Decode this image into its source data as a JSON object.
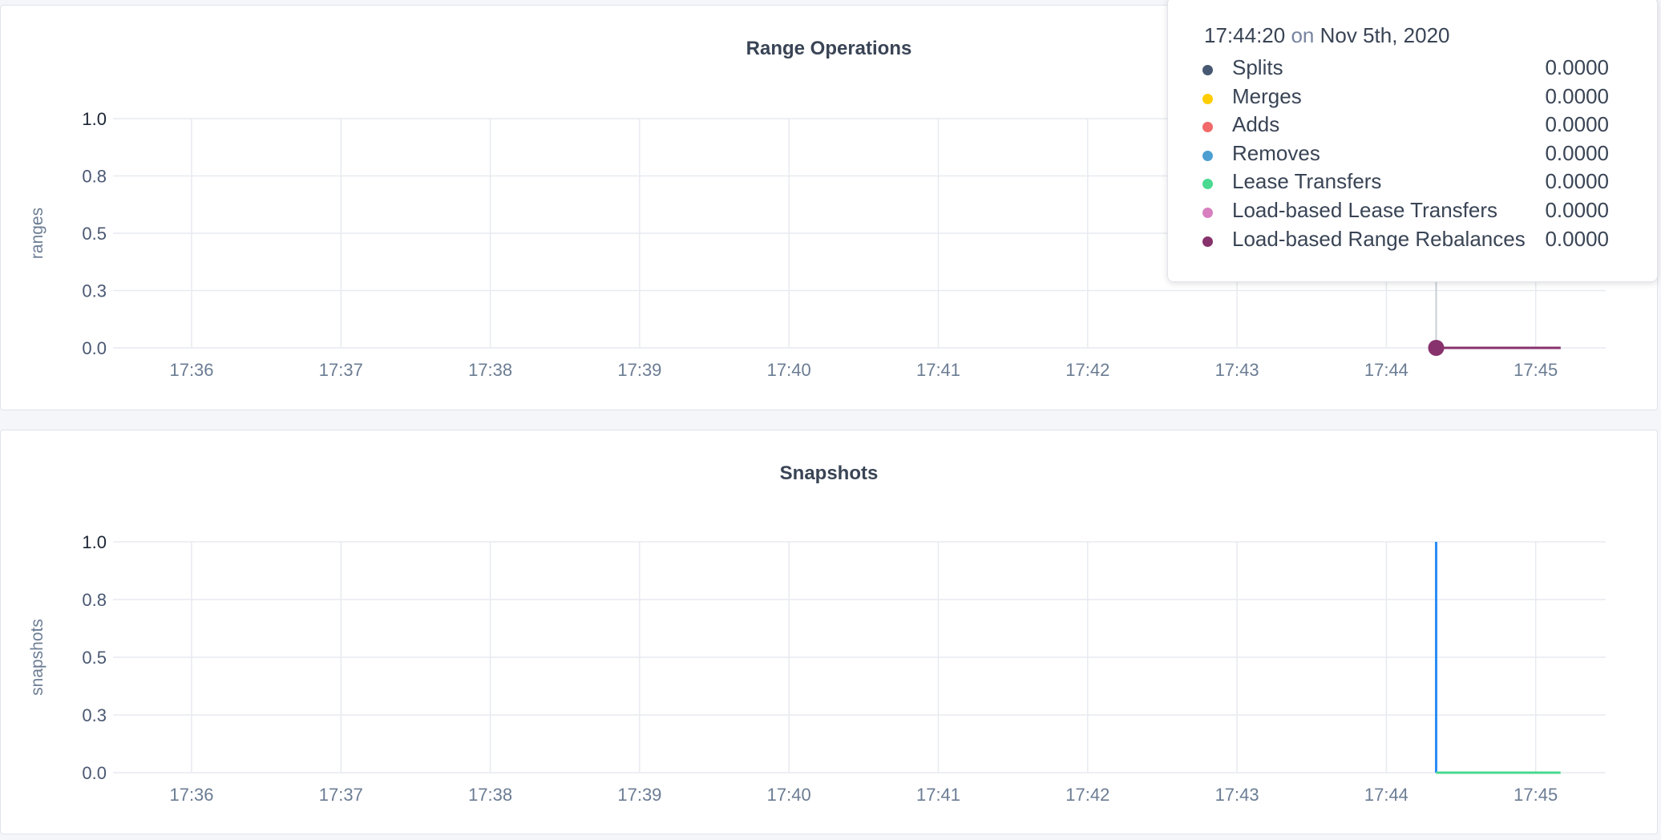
{
  "charts": [
    {
      "title": "Range Operations",
      "ylabel": "ranges",
      "yticks": [
        "1.0",
        "0.8",
        "0.5",
        "0.3",
        "0.0"
      ],
      "xticks": [
        "17:36",
        "17:37",
        "17:38",
        "17:39",
        "17:40",
        "17:41",
        "17:42",
        "17:43",
        "17:44",
        "17:45"
      ]
    },
    {
      "title": "Snapshots",
      "ylabel": "snapshots",
      "yticks": [
        "1.0",
        "0.8",
        "0.5",
        "0.3",
        "0.0"
      ],
      "xticks": [
        "17:36",
        "17:37",
        "17:38",
        "17:39",
        "17:40",
        "17:41",
        "17:42",
        "17:43",
        "17:44",
        "17:45"
      ]
    }
  ],
  "chart_data": [
    {
      "type": "line",
      "title": "Range Operations",
      "ylabel": "ranges",
      "ylim": [
        0,
        1
      ],
      "yticks": [
        1.0,
        0.75,
        0.5,
        0.25,
        0.0
      ],
      "x_ticks": [
        "17:36",
        "17:37",
        "17:38",
        "17:39",
        "17:40",
        "17:41",
        "17:42",
        "17:43",
        "17:44",
        "17:45"
      ],
      "grid": true,
      "series": [
        {
          "name": "Splits",
          "color": "#475872",
          "x": [
            "17:44:20",
            "17:45:10"
          ],
          "y": [
            0,
            0
          ]
        },
        {
          "name": "Merges",
          "color": "#ffcd02",
          "x": [
            "17:44:20",
            "17:45:10"
          ],
          "y": [
            0,
            0
          ]
        },
        {
          "name": "Adds",
          "color": "#f16969",
          "x": [
            "17:44:20",
            "17:45:10"
          ],
          "y": [
            0,
            0
          ]
        },
        {
          "name": "Removes",
          "color": "#4e9fd1",
          "x": [
            "17:44:20",
            "17:45:10"
          ],
          "y": [
            0,
            0
          ]
        },
        {
          "name": "Lease Transfers",
          "color": "#49d990",
          "x": [
            "17:44:20",
            "17:45:10"
          ],
          "y": [
            0,
            0
          ]
        },
        {
          "name": "Load-based Lease Transfers",
          "color": "#d77fbf",
          "x": [
            "17:44:20",
            "17:45:10"
          ],
          "y": [
            0,
            0
          ]
        },
        {
          "name": "Load-based Range Rebalances",
          "color": "#87326d",
          "x": [
            "17:44:20",
            "17:45:10"
          ],
          "y": [
            0,
            0
          ]
        }
      ]
    },
    {
      "type": "line",
      "title": "Snapshots",
      "ylabel": "snapshots",
      "ylim": [
        0,
        1
      ],
      "yticks": [
        1.0,
        0.75,
        0.5,
        0.25,
        0.0
      ],
      "x_ticks": [
        "17:36",
        "17:37",
        "17:38",
        "17:39",
        "17:40",
        "17:41",
        "17:42",
        "17:43",
        "17:44",
        "17:45"
      ],
      "grid": true,
      "series": [
        {
          "color": "#2a8cf5",
          "x": [
            "17:44:20",
            "17:44:20"
          ],
          "y": [
            1,
            0
          ]
        },
        {
          "color": "#49d990",
          "x": [
            "17:44:20",
            "17:45:10"
          ],
          "y": [
            0,
            0
          ]
        }
      ]
    }
  ],
  "tooltip": {
    "time": "17:44:20",
    "on": "on",
    "date": "Nov 5th, 2020",
    "rows": [
      {
        "label": "Splits",
        "value": "0.0000",
        "color": "#475872"
      },
      {
        "label": "Merges",
        "value": "0.0000",
        "color": "#ffcd02"
      },
      {
        "label": "Adds",
        "value": "0.0000",
        "color": "#f16969"
      },
      {
        "label": "Removes",
        "value": "0.0000",
        "color": "#4e9fd1"
      },
      {
        "label": "Lease Transfers",
        "value": "0.0000",
        "color": "#49d990"
      },
      {
        "label": "Load-based Lease Transfers",
        "value": "0.0000",
        "color": "#d77fbf"
      },
      {
        "label": "Load-based Range Rebalances",
        "value": "0.0000",
        "color": "#87326d"
      }
    ]
  }
}
